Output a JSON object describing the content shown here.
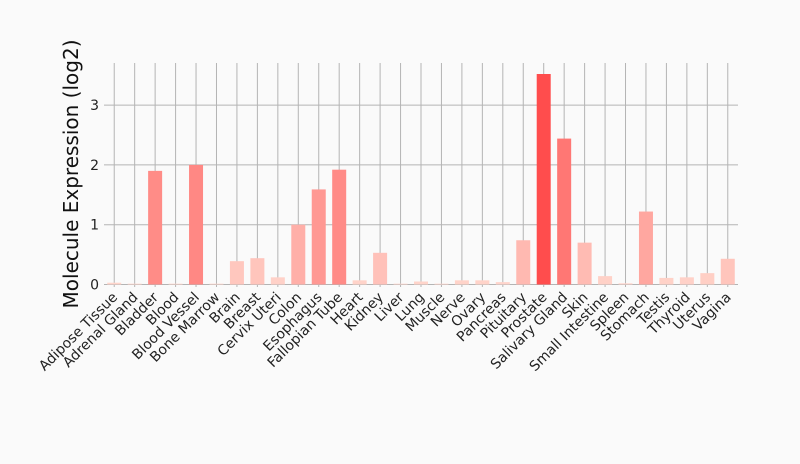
{
  "chart_data": {
    "type": "bar",
    "ylabel": "Molecule Expression (log2)",
    "xlabel": "",
    "ylim": [
      -0.05,
      3.7
    ],
    "yticks": [
      0,
      1,
      2,
      3
    ],
    "grid": true,
    "bar_color_low": "#ffd6cc",
    "bar_color_high": "#ff4d4d",
    "categories": [
      "Adipose Tissue",
      "Adrenal Gland",
      "Bladder",
      "Blood",
      "Blood Vessel",
      "Bone Marrow",
      "Brain",
      "Breast",
      "Cervix Uteri",
      "Colon",
      "Esophagus",
      "Fallopian Tube",
      "Heart",
      "Kidney",
      "Liver",
      "Lung",
      "Muscle",
      "Nerve",
      "Ovary",
      "Pancreas",
      "Pituitary",
      "Prostate",
      "Salivary Gland",
      "Skin",
      "Small Intestine",
      "Spleen",
      "Stomach",
      "Testis",
      "Thyroid",
      "Uterus",
      "Vagina"
    ],
    "values": [
      0.03,
      0.01,
      1.9,
      0.0,
      2.0,
      0.0,
      0.39,
      0.44,
      0.12,
      1.0,
      1.59,
      1.92,
      0.07,
      0.53,
      0.0,
      0.05,
      0.0,
      0.07,
      0.07,
      0.04,
      0.74,
      3.52,
      2.44,
      0.7,
      0.14,
      0.02,
      1.22,
      0.11,
      0.12,
      0.19,
      0.43
    ]
  }
}
